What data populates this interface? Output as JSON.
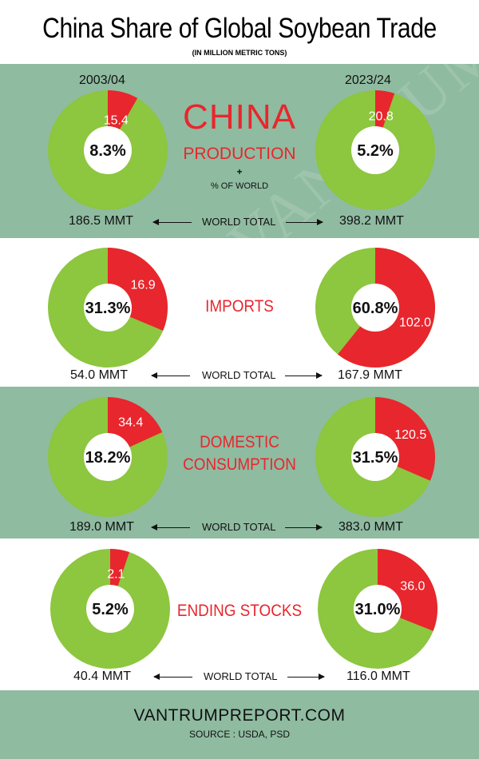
{
  "title": "China Share of Global Soybean Trade",
  "subtitle": "(IN MILLION METRIC TONS)",
  "years": {
    "left": "2003/04",
    "right": "2023/24"
  },
  "header": {
    "china": "CHINA",
    "production": "PRODUCTION",
    "plus": "+",
    "pct_world": "% OF WORLD"
  },
  "world_total_label": "WORLD TOTAL",
  "colors": {
    "green_band": "#8fbba1",
    "pie_green": "#8dc63f",
    "pie_red": "#e8262d",
    "red_text": "#e8262d"
  },
  "chart_data": [
    {
      "type": "pie",
      "title": "PRODUCTION",
      "period": "2003/04",
      "china_value": 15.4,
      "world_total": 186.5,
      "world_total_label": "186.5 MMT",
      "share_label": "8.3%",
      "value_label": "15.4",
      "slices": [
        {
          "name": "China",
          "value": 15.4
        },
        {
          "name": "Rest of World",
          "value": 171.1
        }
      ]
    },
    {
      "type": "pie",
      "title": "PRODUCTION",
      "period": "2023/24",
      "china_value": 20.8,
      "world_total": 398.2,
      "world_total_label": "398.2 MMT",
      "share_label": "5.2%",
      "value_label": "20.8",
      "slices": [
        {
          "name": "China",
          "value": 20.8
        },
        {
          "name": "Rest of World",
          "value": 377.4
        }
      ]
    },
    {
      "type": "pie",
      "title": "IMPORTS",
      "period": "2003/04",
      "china_value": 16.9,
      "world_total": 54.0,
      "world_total_label": "54.0 MMT",
      "share_label": "31.3%",
      "value_label": "16.9",
      "slices": [
        {
          "name": "China",
          "value": 16.9
        },
        {
          "name": "Rest of World",
          "value": 37.1
        }
      ]
    },
    {
      "type": "pie",
      "title": "IMPORTS",
      "period": "2023/24",
      "china_value": 102.0,
      "world_total": 167.9,
      "world_total_label": "167.9 MMT",
      "share_label": "60.8%",
      "value_label": "102.0",
      "slices": [
        {
          "name": "China",
          "value": 102.0
        },
        {
          "name": "Rest of World",
          "value": 65.9
        }
      ]
    },
    {
      "type": "pie",
      "title": "DOMESTIC CONSUMPTION",
      "period": "2003/04",
      "china_value": 34.4,
      "world_total": 189.0,
      "world_total_label": "189.0 MMT",
      "share_label": "18.2%",
      "value_label": "34.4",
      "slices": [
        {
          "name": "China",
          "value": 34.4
        },
        {
          "name": "Rest of World",
          "value": 154.6
        }
      ]
    },
    {
      "type": "pie",
      "title": "DOMESTIC CONSUMPTION",
      "period": "2023/24",
      "china_value": 120.5,
      "world_total": 383.0,
      "world_total_label": "383.0 MMT",
      "share_label": "31.5%",
      "value_label": "120.5",
      "slices": [
        {
          "name": "China",
          "value": 120.5
        },
        {
          "name": "Rest of World",
          "value": 262.5
        }
      ]
    },
    {
      "type": "pie",
      "title": "ENDING STOCKS",
      "period": "2003/04",
      "china_value": 2.1,
      "world_total": 40.4,
      "world_total_label": "40.4 MMT",
      "share_label": "5.2%",
      "value_label": "2.1",
      "slices": [
        {
          "name": "China",
          "value": 2.1
        },
        {
          "name": "Rest of World",
          "value": 38.3
        }
      ]
    },
    {
      "type": "pie",
      "title": "ENDING STOCKS",
      "period": "2023/24",
      "china_value": 36.0,
      "world_total": 116.0,
      "world_total_label": "116.0 MMT",
      "share_label": "31.0%",
      "value_label": "36.0",
      "slices": [
        {
          "name": "China",
          "value": 36.0
        },
        {
          "name": "Rest of World",
          "value": 80.0
        }
      ]
    }
  ],
  "sections": [
    {
      "label": "IMPORTS"
    },
    {
      "label_line1": "DOMESTIC",
      "label_line2": "CONSUMPTION"
    },
    {
      "label": "ENDING STOCKS"
    }
  ],
  "watermark": "The VANTRUMP Report",
  "footer": {
    "site": "VANTRUMPREPORT.COM",
    "source": "SOURCE : USDA, PSD"
  }
}
